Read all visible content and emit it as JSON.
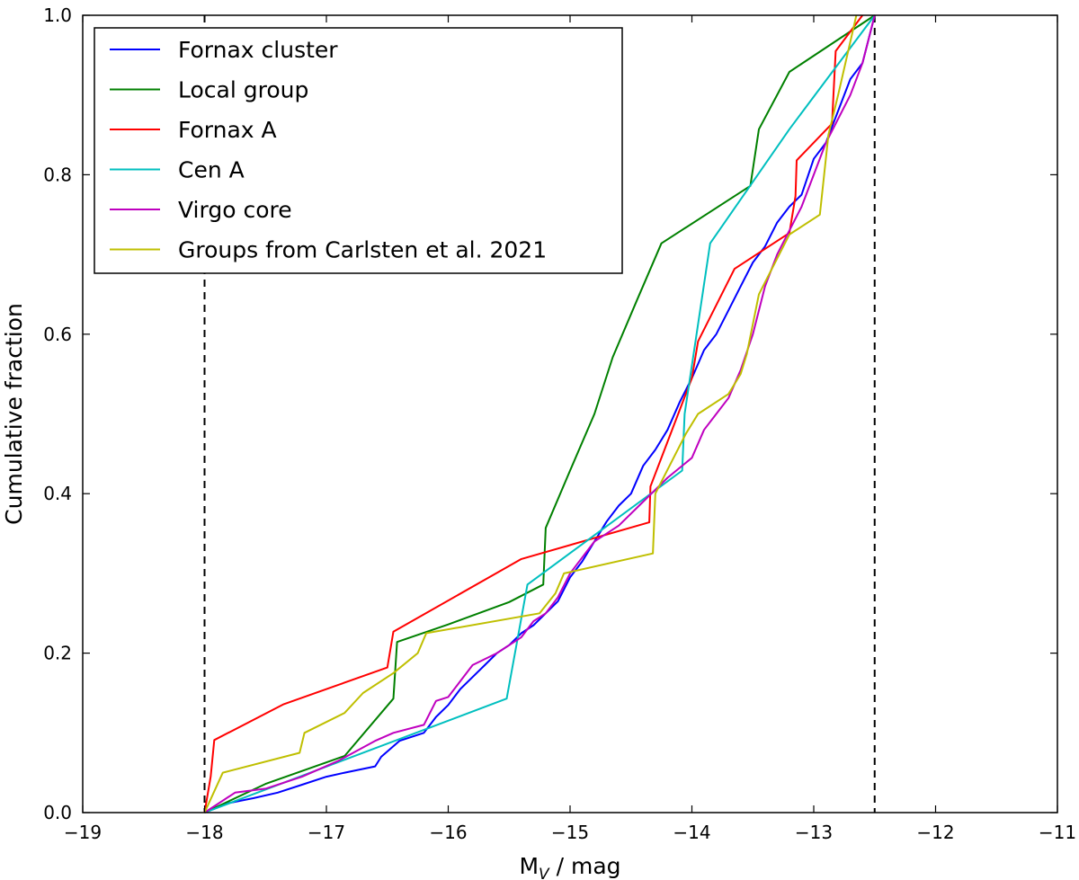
{
  "chart_data": {
    "type": "line",
    "title": "",
    "xlabel_main": "M",
    "xlabel_sub": "V",
    "xlabel_rest": " / mag",
    "ylabel": "Cumulative fraction",
    "xlim": [
      -19,
      -11
    ],
    "ylim": [
      0.0,
      1.0
    ],
    "xticks": [
      -19,
      -18,
      -17,
      -16,
      -15,
      -14,
      -13,
      -12,
      -11
    ],
    "xtick_labels": [
      "−19",
      "−18",
      "−17",
      "−16",
      "−15",
      "−14",
      "−13",
      "−12",
      "−11"
    ],
    "yticks": [
      0.0,
      0.2,
      0.4,
      0.6,
      0.8,
      1.0
    ],
    "ytick_labels": [
      "0.0",
      "0.2",
      "0.4",
      "0.6",
      "0.8",
      "1.0"
    ],
    "grid": false,
    "legend_position": "top-left",
    "vlines": [
      -18.0,
      -12.5
    ],
    "series": [
      {
        "name": "Fornax cluster",
        "color": "#0000ff",
        "x": [
          -18.0,
          -17.8,
          -17.6,
          -17.4,
          -17.2,
          -17.0,
          -16.85,
          -16.6,
          -16.55,
          -16.4,
          -16.2,
          -16.1,
          -16.0,
          -15.9,
          -15.8,
          -15.7,
          -15.6,
          -15.5,
          -15.4,
          -15.3,
          -15.2,
          -15.1,
          -15.0,
          -14.9,
          -14.8,
          -14.7,
          -14.6,
          -14.5,
          -14.4,
          -14.3,
          -14.2,
          -14.1,
          -14.0,
          -13.9,
          -13.8,
          -13.7,
          -13.6,
          -13.5,
          -13.4,
          -13.3,
          -13.2,
          -13.1,
          -13.0,
          -12.9,
          -12.8,
          -12.7,
          -12.6,
          -12.5
        ],
        "y": [
          0.0,
          0.012,
          0.018,
          0.025,
          0.035,
          0.045,
          0.05,
          0.058,
          0.07,
          0.09,
          0.1,
          0.12,
          0.135,
          0.155,
          0.17,
          0.185,
          0.2,
          0.21,
          0.225,
          0.235,
          0.25,
          0.265,
          0.295,
          0.315,
          0.34,
          0.365,
          0.385,
          0.4,
          0.435,
          0.455,
          0.48,
          0.515,
          0.545,
          0.58,
          0.6,
          0.63,
          0.66,
          0.69,
          0.71,
          0.74,
          0.76,
          0.775,
          0.82,
          0.84,
          0.88,
          0.92,
          0.94,
          1.0
        ]
      },
      {
        "name": "Local group",
        "color": "#008000",
        "x": [
          -18.0,
          -17.5,
          -16.85,
          -16.45,
          -16.42,
          -16.0,
          -15.5,
          -15.22,
          -15.2,
          -15.0,
          -14.8,
          -14.65,
          -14.45,
          -14.25,
          -13.52,
          -13.45,
          -13.2,
          -12.5
        ],
        "y": [
          0.0,
          0.036,
          0.071,
          0.143,
          0.214,
          0.236,
          0.264,
          0.286,
          0.357,
          0.429,
          0.5,
          0.571,
          0.643,
          0.714,
          0.786,
          0.857,
          0.929,
          1.0
        ]
      },
      {
        "name": "Fornax A",
        "color": "#ff0000",
        "x": [
          -18.0,
          -17.95,
          -17.92,
          -17.35,
          -16.5,
          -16.45,
          -15.4,
          -14.35,
          -14.34,
          -14.0,
          -13.95,
          -13.65,
          -13.2,
          -13.15,
          -13.14,
          -12.85,
          -12.82,
          -12.6
        ],
        "y": [
          0.0,
          0.045,
          0.091,
          0.136,
          0.182,
          0.227,
          0.318,
          0.364,
          0.409,
          0.545,
          0.591,
          0.682,
          0.727,
          0.773,
          0.818,
          0.864,
          0.955,
          1.0
        ]
      },
      {
        "name": "Cen A",
        "color": "#00bfbf",
        "x": [
          -18.0,
          -15.52,
          -15.35,
          -14.08,
          -14.06,
          -13.85,
          -13.2,
          -12.5
        ],
        "y": [
          0.0,
          0.143,
          0.286,
          0.429,
          0.5,
          0.714,
          0.857,
          1.0
        ]
      },
      {
        "name": "Virgo core",
        "color": "#bf00bf",
        "x": [
          -18.0,
          -17.75,
          -17.5,
          -17.2,
          -16.9,
          -16.6,
          -16.45,
          -16.2,
          -16.1,
          -16.0,
          -15.8,
          -15.6,
          -15.4,
          -15.3,
          -15.2,
          -15.1,
          -15.0,
          -14.9,
          -14.8,
          -14.6,
          -14.4,
          -14.2,
          -14.0,
          -13.9,
          -13.8,
          -13.7,
          -13.6,
          -13.5,
          -13.4,
          -13.3,
          -13.2,
          -13.1,
          -13.0,
          -12.9,
          -12.8,
          -12.7,
          -12.6,
          -12.5
        ],
        "y": [
          0.0,
          0.025,
          0.03,
          0.045,
          0.065,
          0.09,
          0.1,
          0.11,
          0.14,
          0.145,
          0.185,
          0.2,
          0.22,
          0.24,
          0.25,
          0.27,
          0.3,
          0.32,
          0.34,
          0.36,
          0.39,
          0.42,
          0.445,
          0.48,
          0.5,
          0.52,
          0.555,
          0.6,
          0.66,
          0.7,
          0.73,
          0.76,
          0.8,
          0.84,
          0.87,
          0.9,
          0.94,
          1.0
        ]
      },
      {
        "name": "Groups from Carlsten et al. 2021",
        "color": "#bfbf00",
        "x": [
          -18.0,
          -17.85,
          -17.22,
          -17.18,
          -16.85,
          -16.7,
          -16.45,
          -16.25,
          -16.18,
          -15.25,
          -15.12,
          -15.05,
          -14.32,
          -14.3,
          -14.05,
          -13.95,
          -13.7,
          -13.6,
          -13.55,
          -13.45,
          -13.2,
          -12.95,
          -12.88,
          -12.8,
          -12.65
        ],
        "y": [
          0.0,
          0.05,
          0.075,
          0.1,
          0.125,
          0.15,
          0.175,
          0.2,
          0.225,
          0.25,
          0.275,
          0.3,
          0.325,
          0.4,
          0.475,
          0.5,
          0.525,
          0.55,
          0.575,
          0.65,
          0.725,
          0.75,
          0.85,
          0.9,
          1.0
        ]
      }
    ]
  }
}
